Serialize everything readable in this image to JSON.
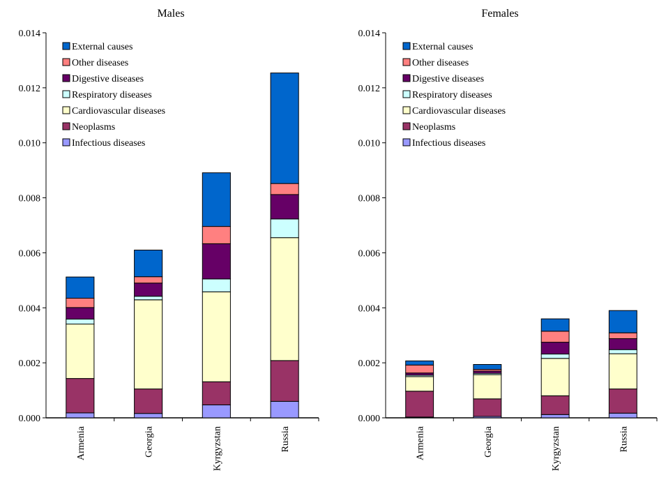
{
  "chart_data": [
    {
      "type": "bar",
      "stacked": true,
      "title": "Males",
      "xlabel": "",
      "ylabel": "",
      "ylim": [
        0,
        0.014
      ],
      "yticks": [
        "0.000",
        "0.002",
        "0.004",
        "0.006",
        "0.008",
        "0.010",
        "0.012",
        "0.014"
      ],
      "grid": false,
      "legend_position": "top-left",
      "categories": [
        "Armenia",
        "Georgia",
        "Kyrgyzstan",
        "Russia"
      ],
      "series": [
        {
          "name": "Infectious diseases",
          "color": "#9999ff",
          "values": [
            0.00018,
            0.00016,
            0.00047,
            0.0006
          ]
        },
        {
          "name": "Neoplasms",
          "color": "#993366",
          "values": [
            0.00125,
            0.00089,
            0.00084,
            0.00148
          ]
        },
        {
          "name": "Cardiovascular diseases",
          "color": "#ffffcc",
          "values": [
            0.00198,
            0.00324,
            0.00327,
            0.00447
          ]
        },
        {
          "name": "Respiratory diseases",
          "color": "#ccffff",
          "values": [
            0.00018,
            0.00013,
            0.00047,
            0.00068
          ]
        },
        {
          "name": "Digestive diseases",
          "color": "#660066",
          "values": [
            0.00042,
            0.00048,
            0.00128,
            0.00089
          ]
        },
        {
          "name": "Other diseases",
          "color": "#ff8080",
          "values": [
            0.00034,
            0.00023,
            0.00063,
            0.0004
          ]
        },
        {
          "name": "External causes",
          "color": "#0066cc",
          "values": [
            0.00077,
            0.00097,
            0.00195,
            0.00402
          ]
        }
      ]
    },
    {
      "type": "bar",
      "stacked": true,
      "title": "Females",
      "xlabel": "",
      "ylabel": "",
      "ylim": [
        0,
        0.014
      ],
      "yticks": [
        "0.000",
        "0.002",
        "0.004",
        "0.006",
        "0.008",
        "0.010",
        "0.012",
        "0.014"
      ],
      "grid": false,
      "legend_position": "top-left",
      "categories": [
        "Armenia",
        "Georgia",
        "Kyrgyzstan",
        "Russia"
      ],
      "series": [
        {
          "name": "Infectious diseases",
          "color": "#9999ff",
          "values": [
            3e-05,
            5e-05,
            0.00012,
            0.00017
          ]
        },
        {
          "name": "Neoplasms",
          "color": "#993366",
          "values": [
            0.00094,
            0.00064,
            0.00068,
            0.00088
          ]
        },
        {
          "name": "Cardiovascular diseases",
          "color": "#ffffcc",
          "values": [
            0.00053,
            0.00088,
            0.00136,
            0.00128
          ]
        },
        {
          "name": "Respiratory diseases",
          "color": "#ccffff",
          "values": [
            5e-05,
            5e-05,
            0.00016,
            0.00015
          ]
        },
        {
          "name": "Digestive diseases",
          "color": "#660066",
          "values": [
            8e-05,
            8e-05,
            0.00043,
            0.0004
          ]
        },
        {
          "name": "Other diseases",
          "color": "#ff8080",
          "values": [
            0.00029,
            6e-05,
            0.0004,
            0.00021
          ]
        },
        {
          "name": "External causes",
          "color": "#0066cc",
          "values": [
            0.00015,
            0.00018,
            0.00045,
            0.00081
          ]
        }
      ]
    }
  ]
}
